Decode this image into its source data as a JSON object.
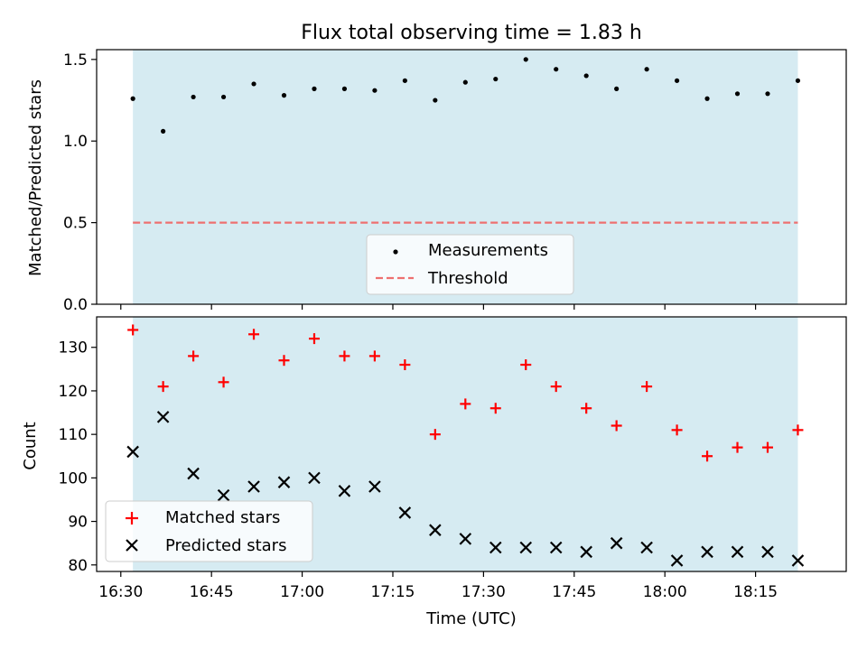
{
  "chart_data": [
    {
      "type": "scatter",
      "title": "Flux total observing time = 1.83 h",
      "ylabel": "Matched/Predicted stars",
      "xlabel": "",
      "ylim": [
        0,
        1.56
      ],
      "yticks": [
        "0.0",
        "0.5",
        "1.0",
        "1.5"
      ],
      "shaded_interval": [
        "16:32",
        "18:22"
      ],
      "shade_color": "#add8e6",
      "x": [
        "16:32",
        "16:37",
        "16:42",
        "16:47",
        "16:52",
        "16:57",
        "17:02",
        "17:07",
        "17:12",
        "17:17",
        "17:22",
        "17:27",
        "17:32",
        "17:37",
        "17:42",
        "17:47",
        "17:52",
        "17:57",
        "18:02",
        "18:07",
        "18:12",
        "18:17",
        "18:22"
      ],
      "series": [
        {
          "name": "Measurements",
          "marker": "dot",
          "color": "#000000",
          "values": [
            1.26,
            1.06,
            1.27,
            1.27,
            1.35,
            1.28,
            1.32,
            1.32,
            1.31,
            1.37,
            1.25,
            1.36,
            1.38,
            1.5,
            1.44,
            1.4,
            1.32,
            1.44,
            1.37,
            1.26,
            1.29,
            1.29,
            1.37
          ]
        },
        {
          "name": "Threshold",
          "style": "dashed",
          "color": "#ee7070",
          "values": [
            0.5,
            0.5
          ]
        }
      ],
      "legend": {
        "location": "lower-center",
        "entries": [
          "Measurements",
          "Threshold"
        ]
      }
    },
    {
      "type": "scatter",
      "title": "",
      "ylabel": "Count",
      "xlabel": "Time (UTC)",
      "ylim": [
        78.5,
        137
      ],
      "yticks": [
        "80",
        "90",
        "100",
        "110",
        "120",
        "130"
      ],
      "xticks": [
        "16:30",
        "16:45",
        "17:00",
        "17:15",
        "17:30",
        "17:45",
        "18:00",
        "18:15"
      ],
      "xlim": [
        "16:26",
        "18:30"
      ],
      "shaded_interval": [
        "16:32",
        "18:22"
      ],
      "shade_color": "#add8e6",
      "x": [
        "16:32",
        "16:37",
        "16:42",
        "16:47",
        "16:52",
        "16:57",
        "17:02",
        "17:07",
        "17:12",
        "17:17",
        "17:22",
        "17:27",
        "17:32",
        "17:37",
        "17:42",
        "17:47",
        "17:52",
        "17:57",
        "18:02",
        "18:07",
        "18:12",
        "18:17",
        "18:22"
      ],
      "series": [
        {
          "name": "Matched stars",
          "marker": "plus",
          "color": "#ff0000",
          "values": [
            134,
            121,
            128,
            122,
            133,
            127,
            132,
            128,
            128,
            126,
            110,
            117,
            116,
            126,
            121,
            116,
            112,
            121,
            111,
            105,
            107,
            107,
            111
          ]
        },
        {
          "name": "Predicted stars",
          "marker": "x",
          "color": "#000000",
          "values": [
            106,
            114,
            101,
            96,
            98,
            99,
            100,
            97,
            98,
            92,
            88,
            86,
            84,
            84,
            84,
            83,
            85,
            84,
            81,
            83,
            83,
            83,
            81
          ]
        }
      ],
      "legend": {
        "location": "lower-left",
        "entries": [
          "Matched stars",
          "Predicted stars"
        ]
      }
    }
  ]
}
